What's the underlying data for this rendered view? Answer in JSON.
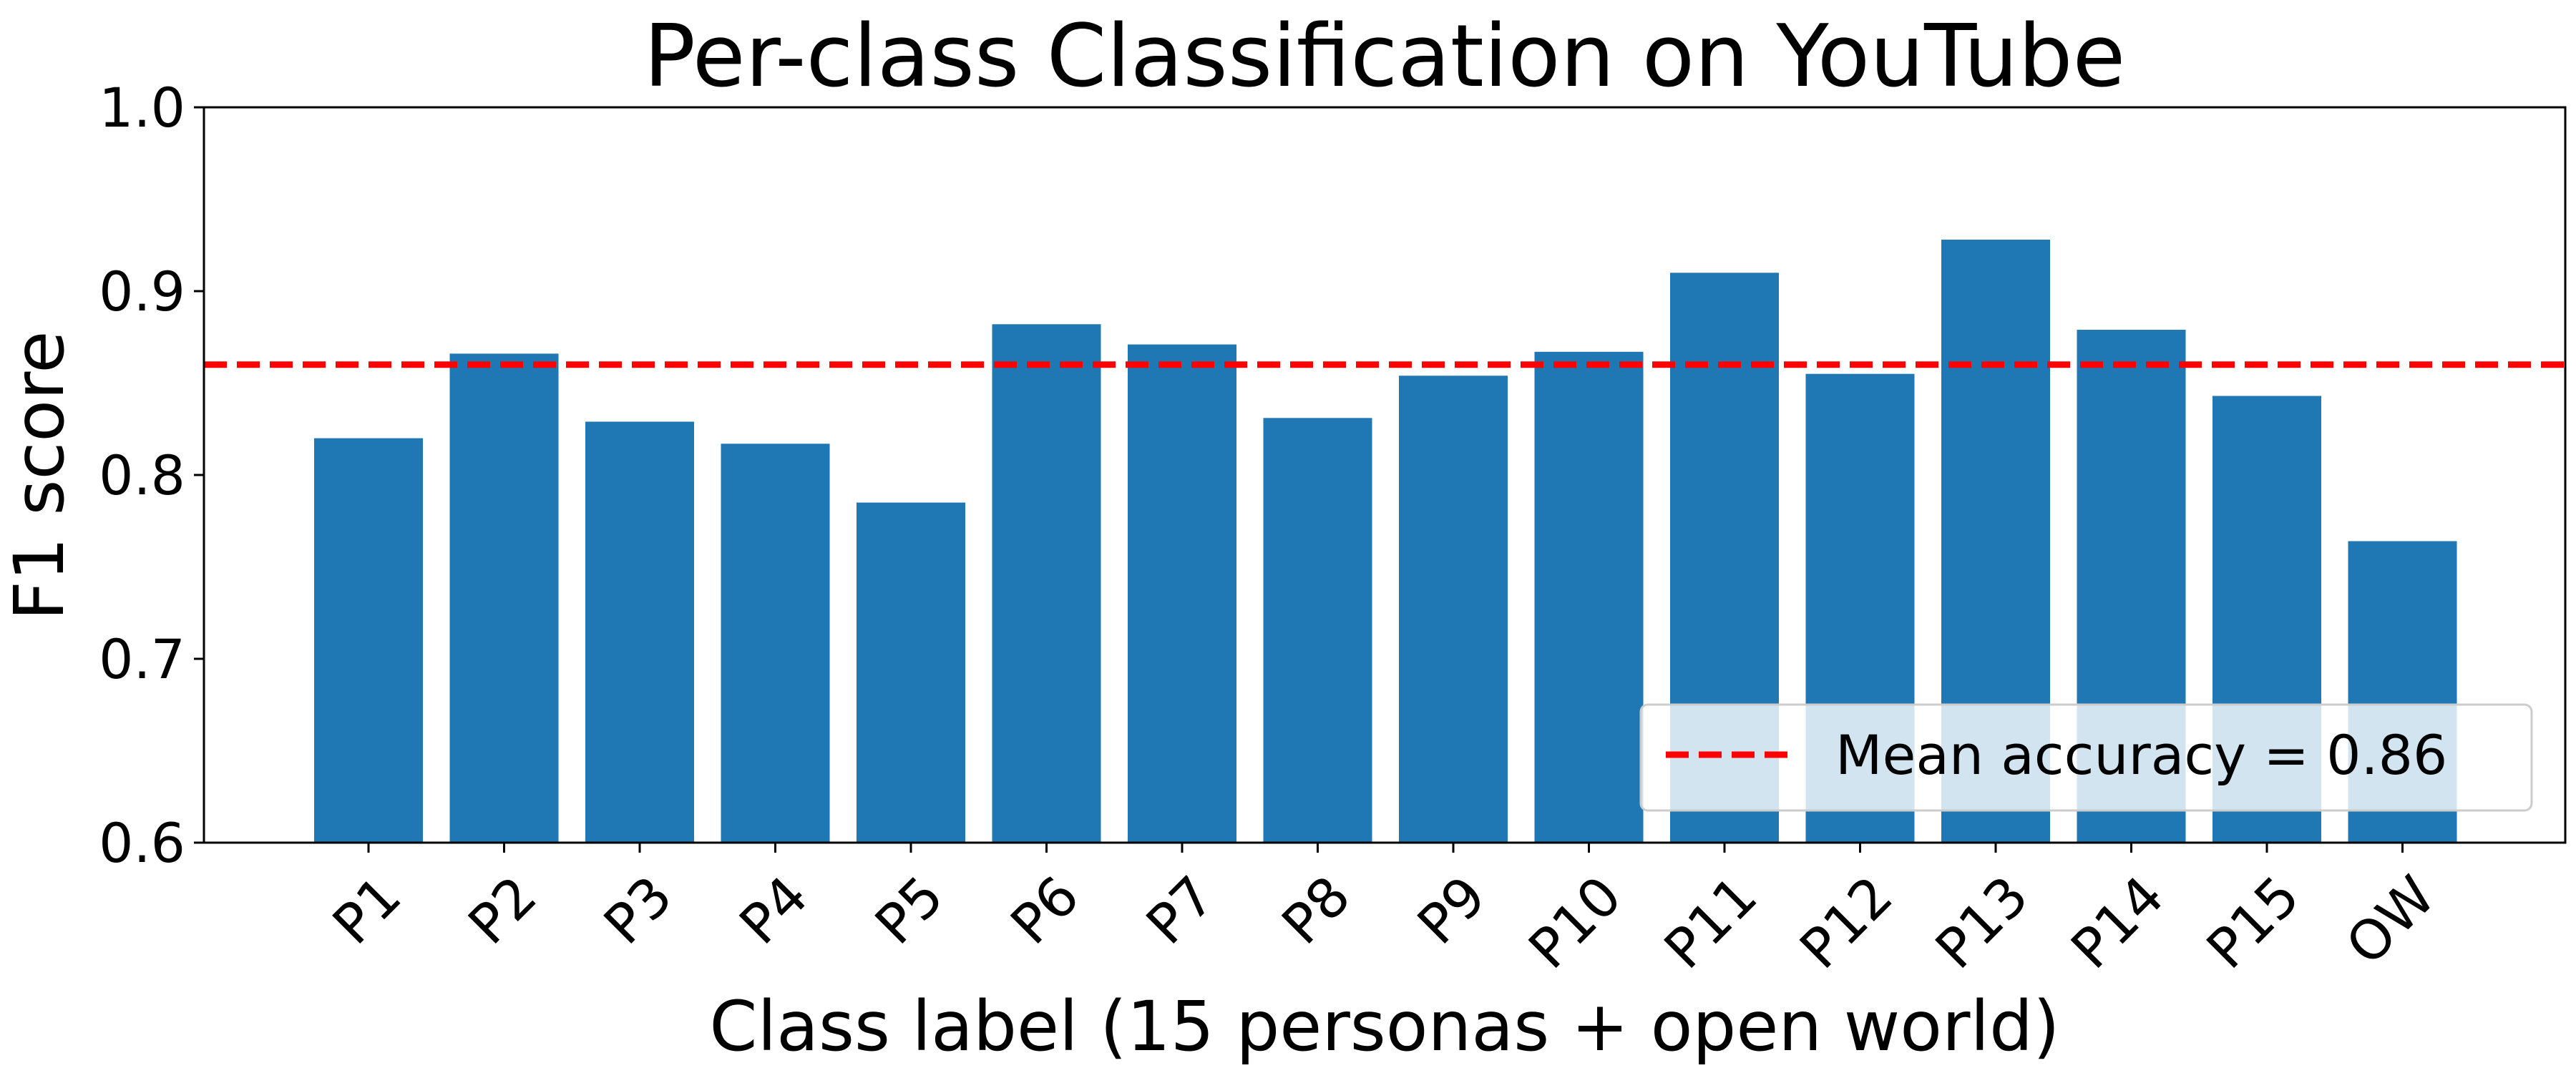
{
  "chart_data": {
    "type": "bar",
    "title": "Per-class Classification on YouTube",
    "xlabel": "Class label (15 personas + open world)",
    "ylabel": "F1 score",
    "categories": [
      "P1",
      "P2",
      "P3",
      "P4",
      "P5",
      "P6",
      "P7",
      "P8",
      "P9",
      "P10",
      "P11",
      "P12",
      "P13",
      "P14",
      "P15",
      "OW"
    ],
    "values": [
      0.82,
      0.866,
      0.829,
      0.817,
      0.785,
      0.882,
      0.871,
      0.831,
      0.854,
      0.867,
      0.91,
      0.855,
      0.928,
      0.879,
      0.843,
      0.764
    ],
    "ylim": [
      0.6,
      1.0
    ],
    "yticks": [
      0.6,
      0.7,
      0.8,
      0.9,
      1.0
    ],
    "ytick_labels": [
      "0.6",
      "0.7",
      "0.8",
      "0.9",
      "1.0"
    ],
    "reference_line": {
      "value": 0.86,
      "label": "Mean accuracy = 0.86",
      "color": "#ff0000",
      "style": "dashed"
    },
    "bar_color": "#1f77b4",
    "grid": false,
    "legend": {
      "position": "lower-right",
      "entries": [
        "Mean accuracy = 0.86"
      ]
    }
  }
}
